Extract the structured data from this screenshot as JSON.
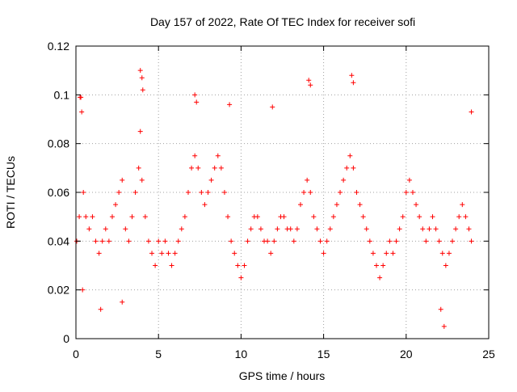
{
  "chart_data": {
    "type": "scatter",
    "title": "Day 157 of 2022, Rate Of TEC Index for receiver sofi",
    "xlabel": "GPS time / hours",
    "ylabel": "ROTI / TECUs",
    "xlim": [
      0,
      25
    ],
    "ylim": [
      0,
      0.12
    ],
    "xticks": [
      0,
      5,
      10,
      15,
      20,
      25
    ],
    "xtick_labels": [
      "0",
      "5",
      "10",
      "15",
      "20",
      "25"
    ],
    "yticks": [
      0,
      0.02,
      0.04,
      0.06,
      0.08,
      0.1,
      0.12
    ],
    "ytick_labels": [
      "0",
      "0.02",
      "0.04",
      "0.06",
      "0.08",
      "0.1",
      "0.12"
    ],
    "grid": true,
    "marker": "plus",
    "series": [
      {
        "name": "ROTI",
        "color": "#ff0000",
        "x": [
          0.05,
          0.2,
          0.3,
          0.45,
          0.6,
          0.8,
          1.0,
          1.2,
          1.4,
          1.6,
          1.8,
          2.0,
          2.2,
          2.4,
          2.6,
          2.8,
          3.0,
          3.2,
          3.4,
          3.6,
          3.8,
          3.9,
          4.0,
          4.2,
          4.4,
          4.6,
          4.8,
          5.0,
          5.2,
          5.4,
          5.6,
          5.8,
          6.0,
          6.2,
          6.4,
          6.6,
          6.8,
          7.0,
          7.2,
          7.4,
          7.6,
          7.8,
          8.0,
          8.2,
          8.4,
          8.6,
          8.8,
          9.0,
          9.2,
          9.4,
          9.6,
          9.8,
          10.0,
          10.2,
          10.4,
          10.6,
          10.8,
          11.0,
          11.2,
          11.4,
          11.6,
          11.8,
          12.0,
          12.2,
          12.4,
          12.6,
          12.8,
          13.0,
          13.2,
          13.4,
          13.6,
          13.8,
          14.0,
          14.2,
          14.4,
          14.6,
          14.8,
          15.0,
          15.2,
          15.4,
          15.6,
          15.8,
          16.0,
          16.2,
          16.4,
          16.6,
          16.8,
          17.0,
          17.2,
          17.4,
          17.6,
          17.8,
          18.0,
          18.2,
          18.4,
          18.6,
          18.8,
          19.0,
          19.2,
          19.4,
          19.6,
          19.8,
          20.0,
          20.2,
          20.4,
          20.6,
          20.8,
          21.0,
          21.2,
          21.4,
          21.6,
          21.8,
          22.0,
          22.2,
          22.4,
          22.6,
          22.8,
          23.0,
          23.2,
          23.4,
          23.6,
          23.8,
          23.95,
          0.25,
          0.35,
          3.9,
          4.0,
          4.05,
          7.2,
          7.3,
          9.3,
          11.9,
          14.1,
          14.2,
          16.7,
          16.8,
          22.3,
          23.95,
          22.1,
          1.5,
          2.8,
          0.4
        ],
        "y": [
          0.04,
          0.05,
          0.099,
          0.06,
          0.05,
          0.045,
          0.05,
          0.04,
          0.035,
          0.04,
          0.045,
          0.04,
          0.05,
          0.055,
          0.06,
          0.065,
          0.045,
          0.04,
          0.05,
          0.06,
          0.07,
          0.085,
          0.065,
          0.05,
          0.04,
          0.035,
          0.03,
          0.04,
          0.035,
          0.04,
          0.035,
          0.03,
          0.035,
          0.04,
          0.045,
          0.05,
          0.06,
          0.07,
          0.075,
          0.07,
          0.06,
          0.055,
          0.06,
          0.065,
          0.07,
          0.075,
          0.07,
          0.06,
          0.05,
          0.04,
          0.035,
          0.03,
          0.025,
          0.03,
          0.04,
          0.045,
          0.05,
          0.05,
          0.045,
          0.04,
          0.04,
          0.035,
          0.04,
          0.045,
          0.05,
          0.05,
          0.045,
          0.045,
          0.04,
          0.045,
          0.055,
          0.06,
          0.065,
          0.06,
          0.05,
          0.045,
          0.04,
          0.035,
          0.04,
          0.045,
          0.05,
          0.055,
          0.06,
          0.065,
          0.07,
          0.075,
          0.07,
          0.06,
          0.055,
          0.05,
          0.045,
          0.04,
          0.035,
          0.03,
          0.025,
          0.03,
          0.035,
          0.04,
          0.035,
          0.04,
          0.045,
          0.05,
          0.06,
          0.065,
          0.06,
          0.055,
          0.05,
          0.045,
          0.04,
          0.045,
          0.05,
          0.045,
          0.04,
          0.035,
          0.03,
          0.035,
          0.04,
          0.045,
          0.05,
          0.055,
          0.05,
          0.045,
          0.04,
          0.099,
          0.093,
          0.11,
          0.107,
          0.102,
          0.1,
          0.097,
          0.096,
          0.095,
          0.106,
          0.104,
          0.108,
          0.105,
          0.005,
          0.093,
          0.012,
          0.012,
          0.015,
          0.02
        ]
      }
    ]
  }
}
